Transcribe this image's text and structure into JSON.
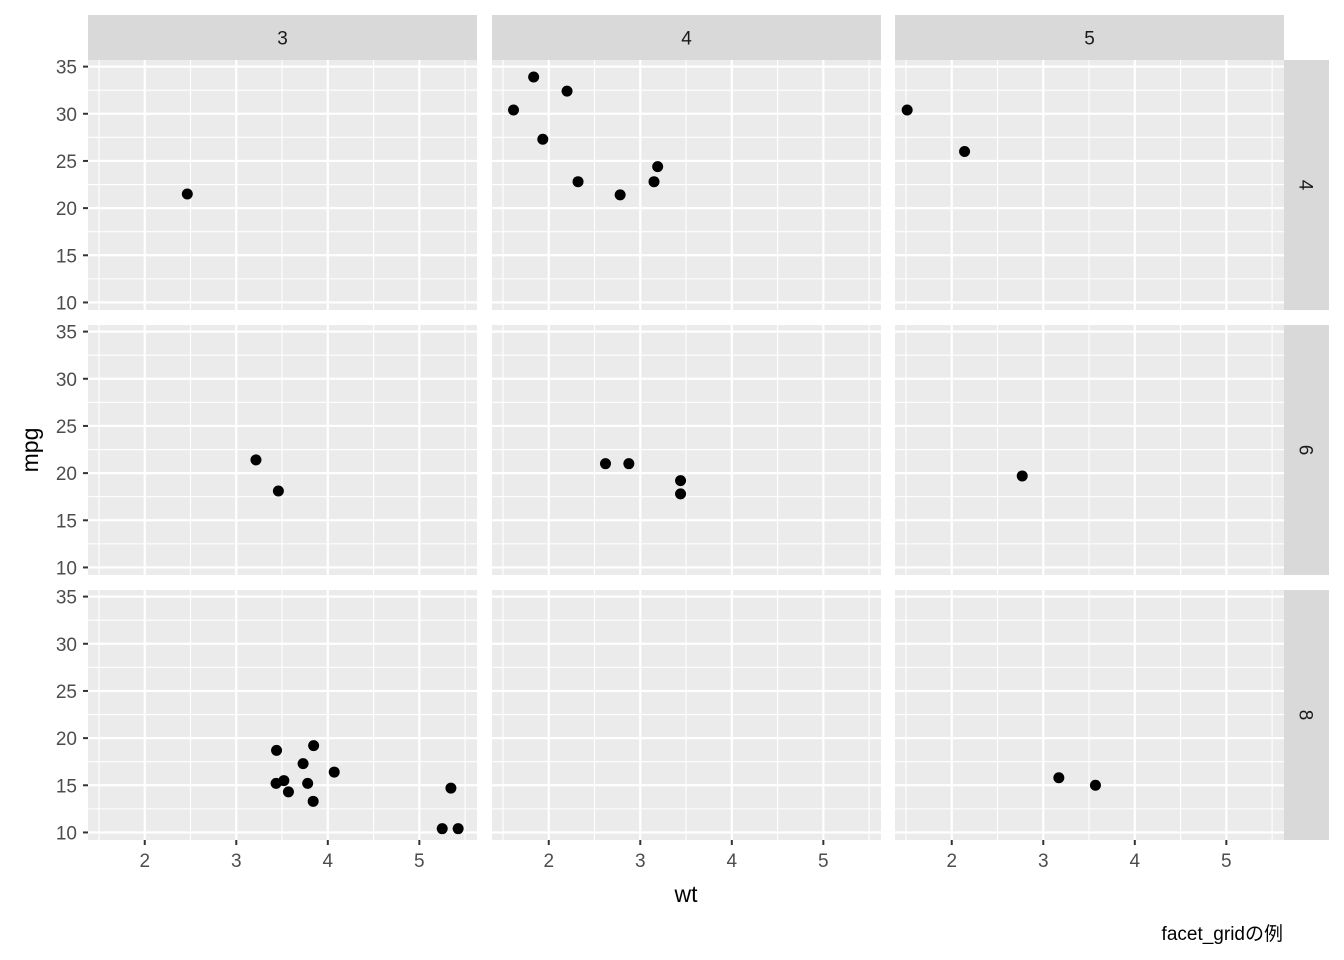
{
  "chart_data": {
    "type": "scatter",
    "facet": "facet_grid",
    "x_label": "wt",
    "y_label": "mpg",
    "caption": "facet_gridの例",
    "col_strips": [
      "3",
      "4",
      "5"
    ],
    "row_strips": [
      "4",
      "6",
      "8"
    ],
    "xlim": [
      1.38,
      5.63
    ],
    "ylim": [
      9.2,
      35.7
    ],
    "x_ticks": [
      2,
      3,
      4,
      5
    ],
    "x_tick_labels": [
      "2",
      "3",
      "4",
      "5"
    ],
    "y_ticks": [
      10,
      15,
      20,
      25,
      30,
      35
    ],
    "y_tick_labels": [
      "10",
      "15",
      "20",
      "25",
      "30",
      "35"
    ],
    "grid": true,
    "colors": {
      "panel_bg": "#EBEBEB",
      "grid_line": "#FFFFFF",
      "strip_bg": "#D9D9D9",
      "point": "#000000",
      "text": "#1A1A1A",
      "tick_label": "#4D4D4D"
    },
    "panels": [
      {
        "row": "4",
        "col": "3",
        "points": [
          [
            2.465,
            21.5
          ]
        ]
      },
      {
        "row": "4",
        "col": "4",
        "points": [
          [
            2.32,
            22.8
          ],
          [
            3.19,
            24.4
          ],
          [
            3.15,
            22.8
          ],
          [
            2.2,
            32.4
          ],
          [
            1.615,
            30.4
          ],
          [
            1.835,
            33.9
          ],
          [
            1.935,
            27.3
          ],
          [
            2.78,
            21.4
          ]
        ]
      },
      {
        "row": "4",
        "col": "5",
        "points": [
          [
            2.14,
            26.0
          ],
          [
            1.513,
            30.4
          ]
        ]
      },
      {
        "row": "6",
        "col": "3",
        "points": [
          [
            3.215,
            21.4
          ],
          [
            3.46,
            18.1
          ]
        ]
      },
      {
        "row": "6",
        "col": "4",
        "points": [
          [
            2.62,
            21.0
          ],
          [
            2.875,
            21.0
          ],
          [
            3.44,
            19.2
          ],
          [
            3.44,
            17.8
          ]
        ]
      },
      {
        "row": "6",
        "col": "5",
        "points": [
          [
            2.77,
            19.7
          ]
        ]
      },
      {
        "row": "8",
        "col": "3",
        "points": [
          [
            3.44,
            18.7
          ],
          [
            3.57,
            14.3
          ],
          [
            4.07,
            16.4
          ],
          [
            3.73,
            17.3
          ],
          [
            3.78,
            15.2
          ],
          [
            5.25,
            10.4
          ],
          [
            5.424,
            10.4
          ],
          [
            5.345,
            14.7
          ],
          [
            3.52,
            15.5
          ],
          [
            3.435,
            15.2
          ],
          [
            3.84,
            13.3
          ],
          [
            3.845,
            19.2
          ]
        ]
      },
      {
        "row": "8",
        "col": "4",
        "points": []
      },
      {
        "row": "8",
        "col": "5",
        "points": [
          [
            3.17,
            15.8
          ],
          [
            3.57,
            15.0
          ]
        ]
      }
    ]
  }
}
